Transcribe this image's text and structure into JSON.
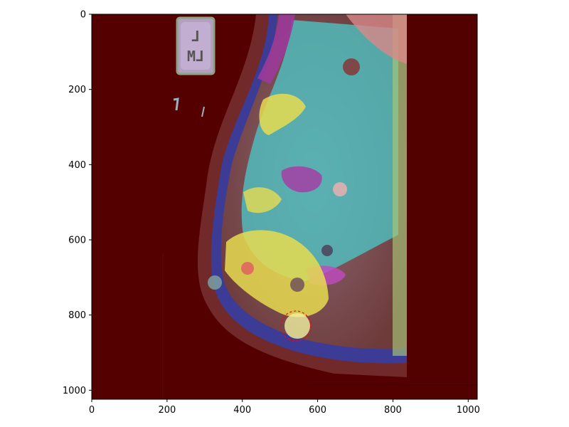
{
  "figure": {
    "image_extent": {
      "x": [
        0,
        1024
      ],
      "y": [
        1024,
        0
      ]
    },
    "x_ticks": [
      0,
      200,
      400,
      600,
      800,
      1000
    ],
    "y_ticks": [
      0,
      200,
      400,
      600,
      800,
      1000
    ],
    "marker_text": "L\nLM",
    "colors": {
      "background": "#550000",
      "frame": "#000000",
      "dense_cyan": "#4fc2c2",
      "dense_yellow": "#e6dc50",
      "purple": "#9b3a9b",
      "blue_outline": "#3c3c96",
      "green_stripe": "#a8c878",
      "pink_top": "#d88888",
      "lesion_circle": "#ff0000"
    },
    "lesion_marker": {
      "x": 545,
      "y": 825,
      "r": 40
    }
  }
}
